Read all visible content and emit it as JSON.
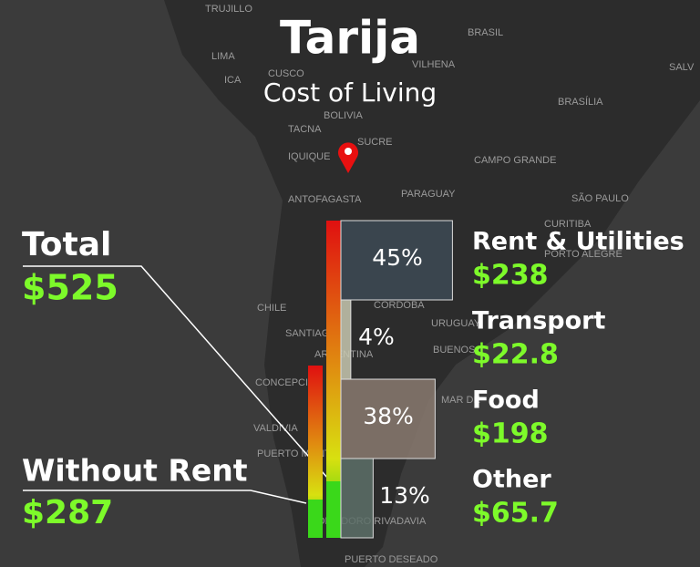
{
  "header": {
    "title": "Tarija",
    "subtitle": "Cost of Living"
  },
  "total": {
    "label": "Total",
    "amount": "$525"
  },
  "without_rent": {
    "label": "Without Rent",
    "amount": "$287"
  },
  "items": [
    {
      "name": "Rent & Utilities",
      "amount": "$238",
      "share": {
        "value": 45,
        "label": "45%"
      }
    },
    {
      "name": "Transport",
      "amount": "$22.8",
      "share": {
        "value": 4,
        "label": "4%"
      }
    },
    {
      "name": "Food",
      "amount": "$198",
      "share": {
        "value": 38,
        "label": "38%"
      }
    },
    {
      "name": "Other",
      "amount": "$65.7",
      "share": {
        "value": 13,
        "label": "13%"
      }
    }
  ],
  "map_labels": [
    "TRUJILLO",
    "LIMA",
    "ICA",
    "CUSCO",
    "BOLIVIA",
    "TACNA",
    "IQUIQUE",
    "SUCRE",
    "ANTOFAGASTA",
    "PARAGUAY",
    "CAMPO GRANDE",
    "BRASIL",
    "VILHENA",
    "BRASÍLIA",
    "SALV",
    "SÃO PAULO",
    "CURITIBA",
    "PORTO ALEGRE",
    "CHILE",
    "SANTIAGO",
    "ARGENTINA",
    "CÓRDOBA",
    "URUGUAY",
    "BUENOS",
    "CONCEPCIÓN",
    "MAR DE",
    "VALDIVIA",
    "PUERTO MONTT",
    "COMODORO RIVADAVIA",
    "PUERTO DESEADO"
  ]
}
